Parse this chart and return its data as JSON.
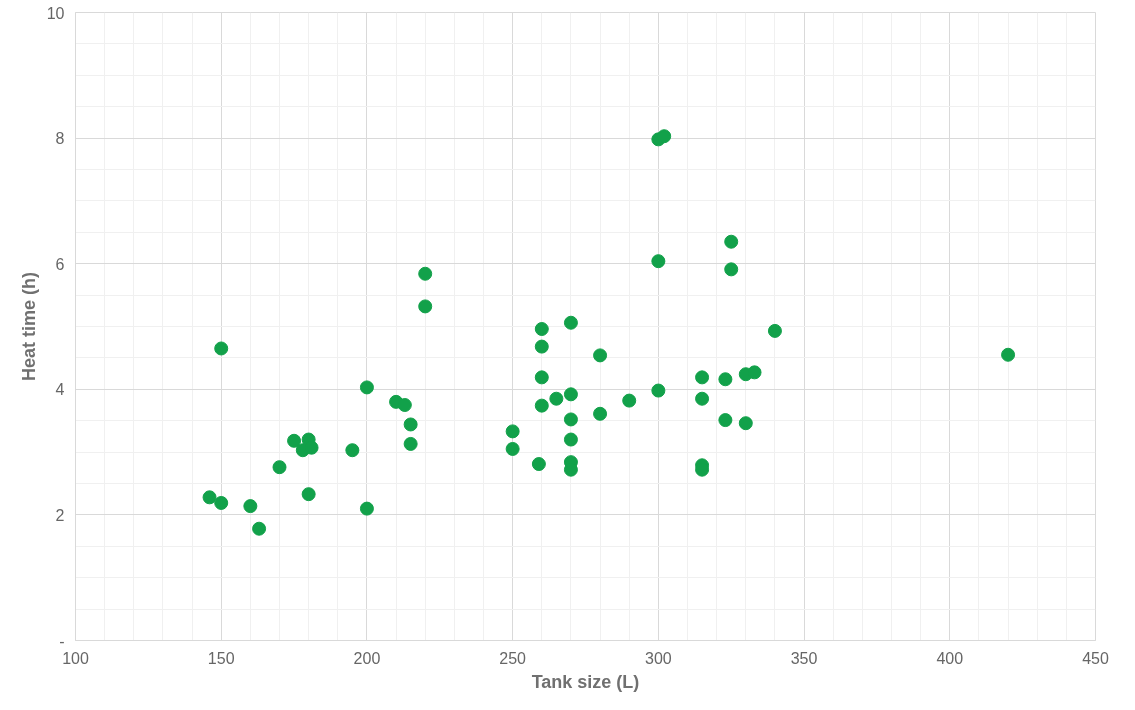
{
  "chart_data": {
    "type": "scatter",
    "xlabel": "Tank size (L)",
    "ylabel": "Heat time (h)",
    "x": [
      146,
      150,
      150,
      160,
      163,
      170,
      175,
      178,
      180,
      181,
      180,
      195,
      200,
      200,
      210,
      213,
      215,
      215,
      220,
      220,
      250,
      250,
      259,
      260,
      260,
      260,
      260,
      265,
      270,
      270,
      270,
      270,
      270,
      270,
      280,
      280,
      290,
      300,
      302,
      300,
      300,
      315,
      315,
      315,
      315,
      323,
      323,
      325,
      325,
      330,
      333,
      330,
      340,
      420
    ],
    "values": [
      2.28,
      2.19,
      4.65,
      2.14,
      1.78,
      2.76,
      3.18,
      3.03,
      3.2,
      3.07,
      2.33,
      3.03,
      4.03,
      2.1,
      3.8,
      3.75,
      3.44,
      3.13,
      5.84,
      5.32,
      3.33,
      3.05,
      2.81,
      4.96,
      4.68,
      4.19,
      3.74,
      3.85,
      5.06,
      3.92,
      3.52,
      3.2,
      2.84,
      2.72,
      4.54,
      3.61,
      3.82,
      7.98,
      8.03,
      6.04,
      3.98,
      4.19,
      3.85,
      2.79,
      2.72,
      4.16,
      3.51,
      6.35,
      5.91,
      4.24,
      4.27,
      3.46,
      4.93,
      4.55
    ],
    "color": "#12a14a",
    "marker": "circle",
    "grid": true,
    "xlim": [
      100,
      450
    ],
    "xticks": [
      100,
      150,
      200,
      250,
      300,
      350,
      400,
      450
    ],
    "ylim": [
      0,
      10
    ],
    "yticks": [
      {
        "value": 0,
        "label": "-"
      },
      2,
      4,
      6,
      8,
      10
    ]
  }
}
